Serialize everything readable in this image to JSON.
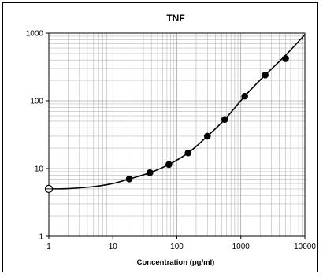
{
  "chart_data": {
    "type": "line",
    "title": "TNF",
    "xlabel": "Concentration   (pg/ml)",
    "ylabel": "",
    "x_scale": "log",
    "y_scale": "log",
    "xlim": [
      1,
      10000
    ],
    "ylim": [
      1,
      1000
    ],
    "grid": true,
    "x_tick_labels": [
      "1",
      "10",
      "100",
      "1000",
      "10000"
    ],
    "y_tick_labels": [
      "1",
      "10",
      "100",
      "1000"
    ],
    "series": [
      {
        "kind": "points",
        "marker": "filled-circle",
        "x": [
          18,
          38,
          75,
          150,
          300,
          560,
          1150,
          2400,
          5000
        ],
        "y": [
          7,
          8.7,
          11.5,
          17,
          30,
          53,
          117,
          240,
          420
        ]
      },
      {
        "kind": "points",
        "marker": "open-circle-cross",
        "x": [
          1
        ],
        "y": [
          5
        ]
      },
      {
        "kind": "fit-curve",
        "x": [
          1,
          2,
          5,
          10,
          18,
          38,
          75,
          150,
          300,
          560,
          1150,
          2400,
          5000,
          10000
        ],
        "y": [
          5,
          5.05,
          5.4,
          6.0,
          7,
          8.7,
          11.5,
          17,
          30,
          53,
          117,
          240,
          470,
          950
        ]
      }
    ]
  }
}
